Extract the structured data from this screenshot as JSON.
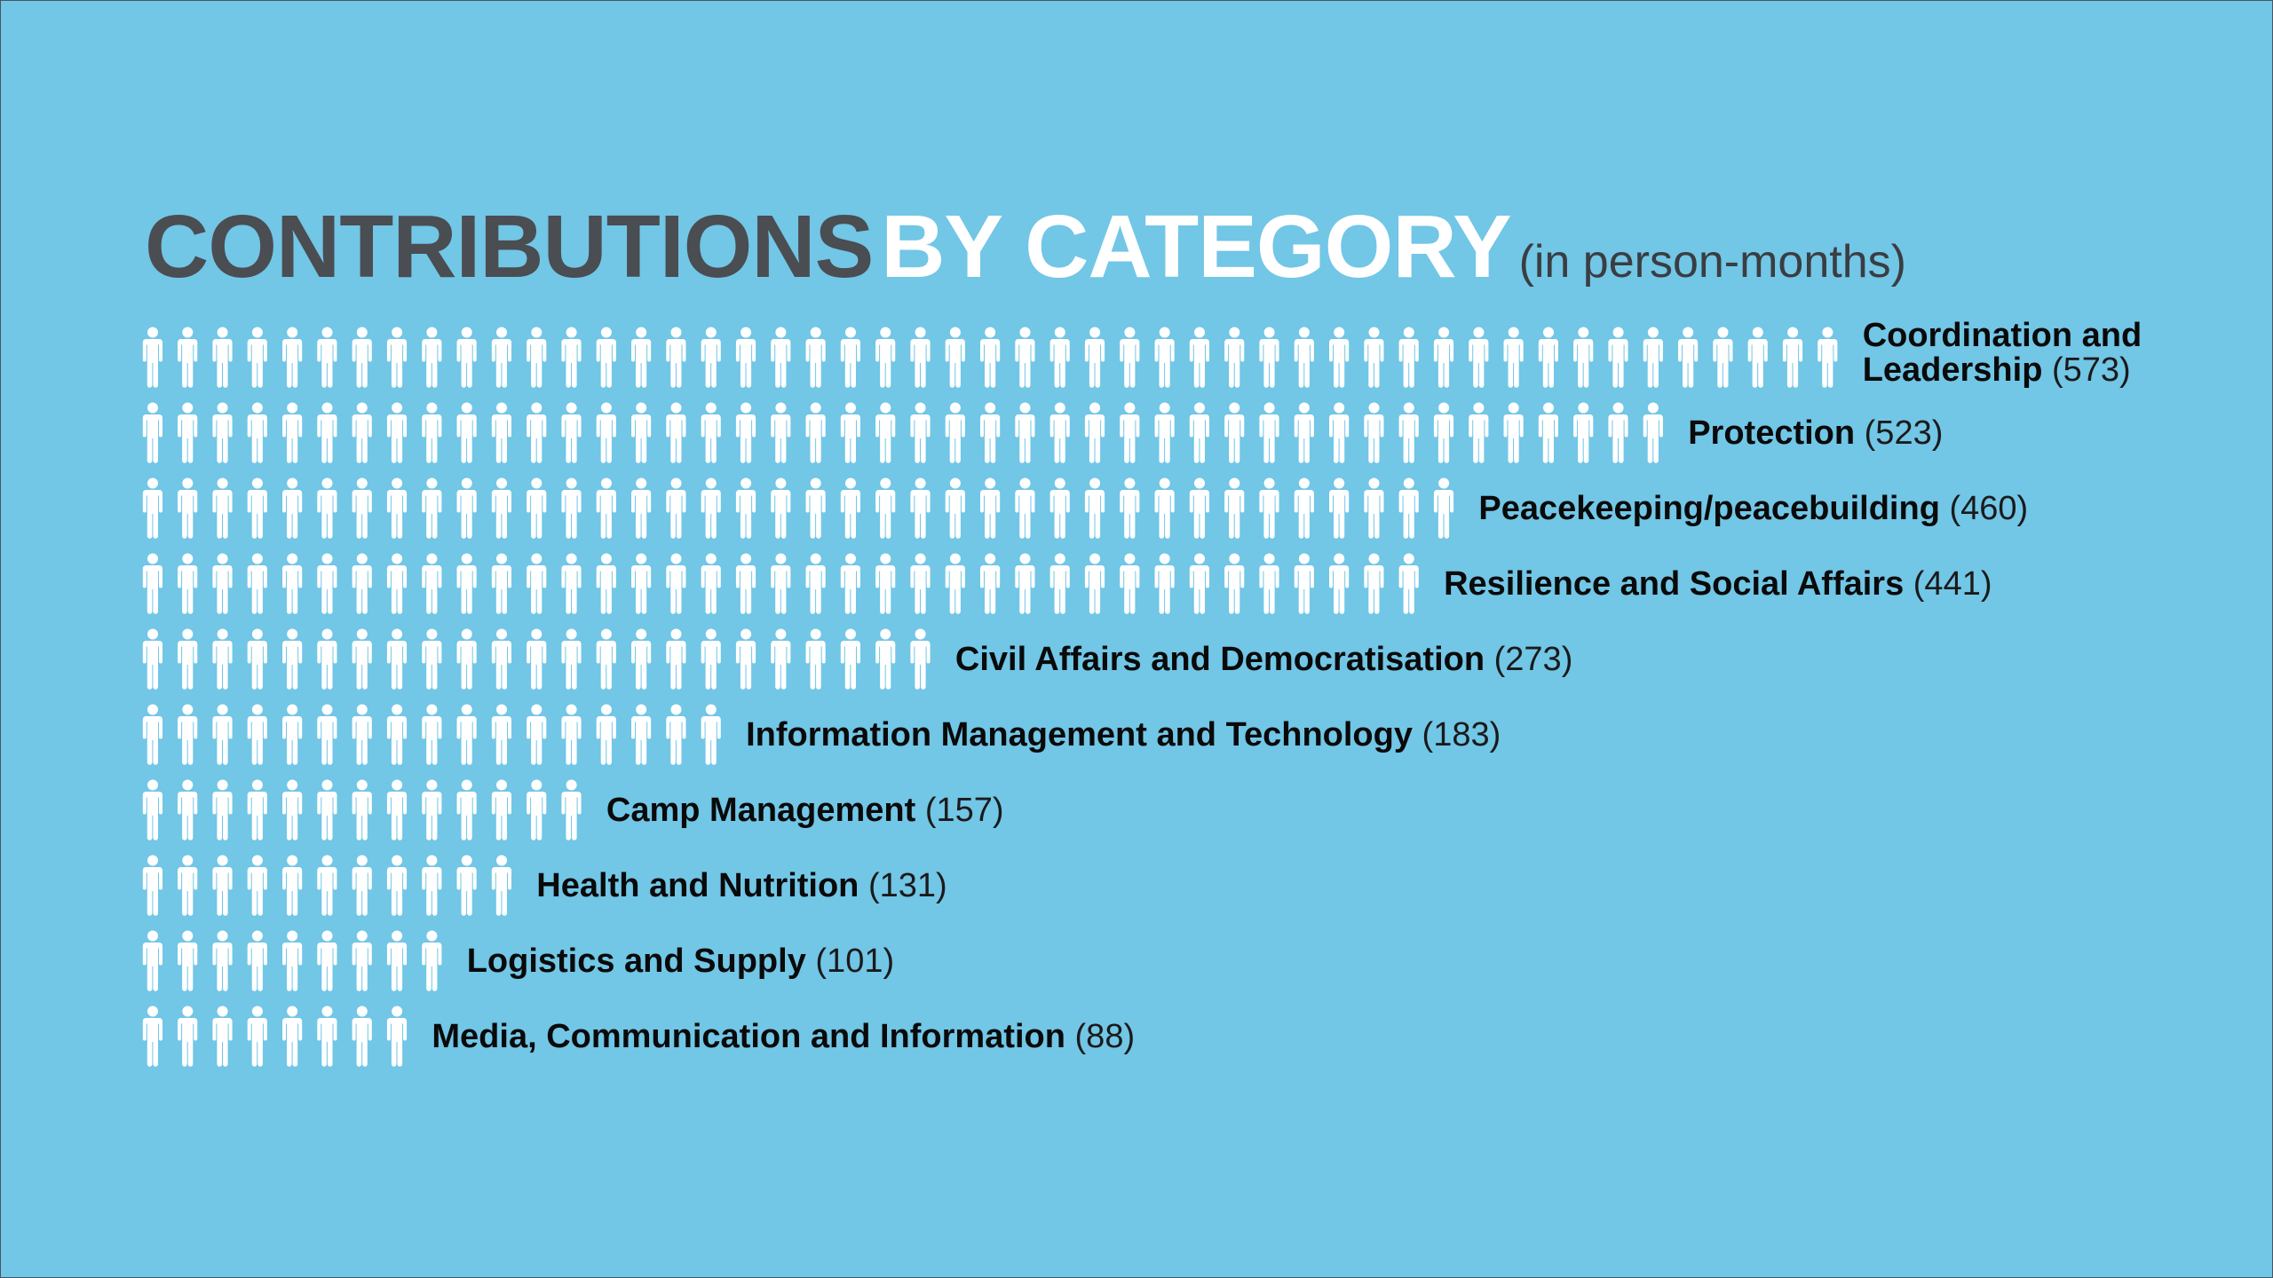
{
  "title": {
    "part1": "CONTRIBUTIONS",
    "part2": "BY CATEGORY",
    "subtitle": "(in person-months)"
  },
  "colors": {
    "background": "#72c6e6",
    "icon": "#ffffff",
    "title_dark": "#4a4d51",
    "title_light": "#ffffff",
    "label_text": "#0a0a0a"
  },
  "chart_data": {
    "type": "bar",
    "orientation": "horizontal",
    "style": "pictogram",
    "icon": "person-icon",
    "title": "CONTRIBUTIONS BY CATEGORY",
    "subtitle": "(in person-months)",
    "categories": [
      "Coordination and Leadership",
      "Protection",
      "Peacekeeping/peacebuilding",
      "Resilience and Social Affairs",
      "Civil Affairs and Democratisation",
      "Information Management and Technology",
      "Camp Management",
      "Health and Nutrition",
      "Logistics and Supply",
      "Media, Communication and Information"
    ],
    "values": [
      573,
      523,
      460,
      441,
      273,
      183,
      157,
      131,
      101,
      88
    ],
    "value_labels": [
      "(573)",
      "(523)",
      "(460)",
      "(441)",
      "(273)",
      "(183)",
      "(157)",
      "(131)",
      "(101)",
      "(88)"
    ],
    "icon_counts": [
      49,
      44,
      38,
      37,
      23,
      17,
      13,
      11,
      9,
      8
    ],
    "label_lines": [
      [
        "Coordination and",
        "Leadership"
      ],
      [
        "Protection"
      ],
      [
        "Peacekeeping/peacebuilding"
      ],
      [
        "Resilience and Social Affairs"
      ],
      [
        "Civil Affairs and Democratisation"
      ],
      [
        "Information Management and Technology"
      ],
      [
        "Camp Management"
      ],
      [
        "Health and Nutrition"
      ],
      [
        "Logistics and Supply"
      ],
      [
        "Media, Communication and Information"
      ]
    ]
  }
}
